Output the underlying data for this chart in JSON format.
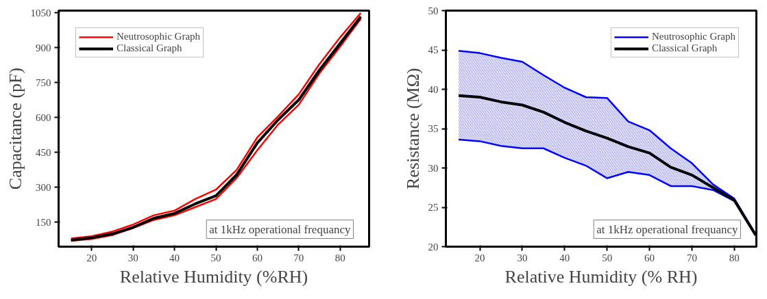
{
  "chart_data": [
    {
      "type": "line",
      "xlabel": "Relative Humidity (%RH)",
      "ylabel": "Capacitance (pF)",
      "x": [
        15,
        20,
        25,
        30,
        35,
        40,
        45,
        50,
        55,
        60,
        65,
        70,
        75,
        80,
        85
      ],
      "series": [
        {
          "name": "Neutrosophic Graph",
          "color": "#ff0000",
          "values": [
            80,
            90,
            110,
            140,
            180,
            200,
            250,
            290,
            375,
            515,
            605,
            700,
            830,
            945,
            1050
          ]
        },
        {
          "color": "#ff0000",
          "values": [
            70,
            78,
            95,
            125,
            160,
            180,
            215,
            250,
            340,
            460,
            570,
            655,
            790,
            905,
            1025
          ]
        },
        {
          "name": "Classical Graph",
          "color": "#000000",
          "values": [
            73,
            83,
            100,
            128,
            167,
            188,
            229,
            264,
            354,
            491,
            590,
            676,
            804,
            919,
            1034
          ]
        }
      ],
      "xlim": [
        12,
        87
      ],
      "ylim": [
        45,
        1060
      ],
      "xticks": [
        20,
        30,
        40,
        50,
        60,
        70,
        80
      ],
      "yticks": [
        150,
        300,
        450,
        600,
        750,
        900,
        1050
      ],
      "grid": false,
      "legend": "top left",
      "annotations": [
        "at 1kHz operational frequancy"
      ]
    },
    {
      "type": "line",
      "xlabel": "Relative Humidity (% RH)",
      "ylabel": "Resistance (MΩ)",
      "x": [
        15,
        20,
        25,
        30,
        35,
        40,
        45,
        50,
        55,
        60,
        65,
        70,
        75,
        80,
        85
      ],
      "series": [
        {
          "name": "Neutrosophic Graph",
          "color": "#0000ff",
          "values": [
            44.9,
            44.6,
            44.0,
            43.5,
            41.8,
            40.2,
            39.0,
            38.9,
            35.9,
            34.8,
            32.5,
            30.6,
            27.9,
            26.1,
            21.6
          ]
        },
        {
          "color": "#0000ff",
          "values": [
            33.6,
            33.4,
            32.8,
            32.5,
            32.5,
            31.3,
            30.3,
            28.7,
            29.5,
            29.1,
            27.7,
            27.7,
            27.2,
            25.8,
            21.4
          ]
        },
        {
          "name": "Classical Graph",
          "color": "#000000",
          "values": [
            39.2,
            39.0,
            38.4,
            38.0,
            37.1,
            35.8,
            34.7,
            33.8,
            32.7,
            31.9,
            30.1,
            29.1,
            27.5,
            25.9,
            21.5
          ],
          "lower": [
            33.6,
            33.4,
            32.8,
            32.5,
            32.5,
            31.3,
            30.3,
            28.7,
            29.5,
            29.1,
            27.7,
            27.7,
            27.2,
            25.8,
            21.4
          ],
          "upper": [
            44.9,
            44.6,
            44.0,
            43.5,
            41.8,
            40.2,
            39.0,
            38.9,
            35.9,
            34.8,
            32.5,
            30.6,
            27.9,
            26.1,
            21.6
          ]
        }
      ],
      "xlim": [
        12,
        85.2
      ],
      "ylim": [
        20,
        50
      ],
      "xticks": [
        20,
        30,
        40,
        50,
        60,
        70,
        80
      ],
      "yticks": [
        20,
        25,
        30,
        35,
        40,
        45,
        50
      ],
      "grid": false,
      "legend": "top right",
      "annotations": [
        "at 1kHz operational frequancy"
      ]
    }
  ]
}
